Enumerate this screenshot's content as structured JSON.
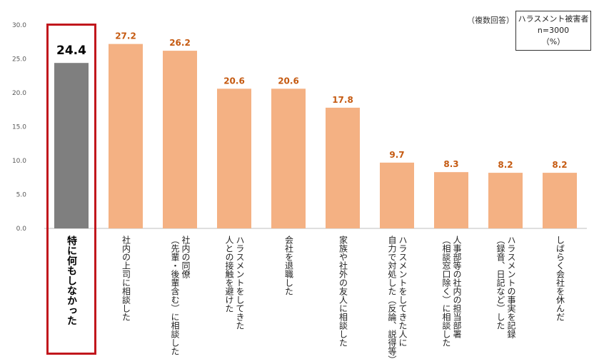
{
  "chart_data": {
    "type": "bar",
    "title": "",
    "xlabel": "",
    "ylabel": "",
    "ylim": [
      0,
      30
    ],
    "yticks": [
      "0.0",
      "5.0",
      "10.0",
      "15.0",
      "20.0",
      "25.0",
      "30.0"
    ],
    "note": "（複数回答）",
    "legend_lines": [
      "ハラスメント被害者",
      "n=3000",
      "（%）"
    ],
    "categories": [
      [
        "特に何もしなかった"
      ],
      [
        "社内の上司に相談した"
      ],
      [
        "社内の同僚",
        "（先輩・後輩含む）に相談した"
      ],
      [
        "ハラスメントをしてきた",
        "人との接触を避けた"
      ],
      [
        "会社を退職した"
      ],
      [
        "家族や社外の友人に相談した"
      ],
      [
        "ハラスメントをしてきた人に",
        "自力で対処した（反論、説得等）"
      ],
      [
        "人事部等の社内の担当部署",
        "（相談窓口除く）に相談した"
      ],
      [
        "ハラスメントの事実を記録",
        "（録音、日記など）した"
      ],
      [
        "しばらく会社を休んだ"
      ]
    ],
    "values": [
      24.4,
      27.2,
      26.2,
      20.6,
      20.6,
      17.8,
      9.7,
      8.3,
      8.2,
      8.2
    ],
    "value_labels": [
      "24.4",
      "27.2",
      "26.2",
      "20.6",
      "20.6",
      "17.8",
      "9.7",
      "8.3",
      "8.2",
      "8.2"
    ],
    "highlight_index": 0,
    "colors": {
      "highlight_bar": "#7f7f7f",
      "bar": "#f4b183",
      "value_label": "#c55a11",
      "highlight_label": "#000000",
      "highlight_border": "#c1171d",
      "axis": "#bfbfbf"
    }
  }
}
